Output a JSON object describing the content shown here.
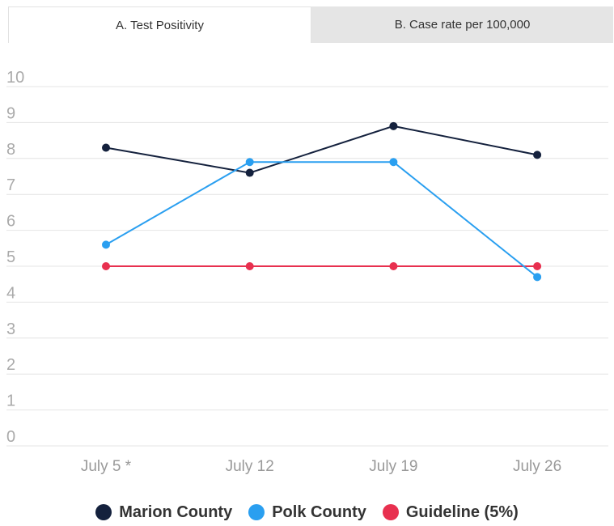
{
  "tabs": [
    {
      "label": "A. Test Positivity",
      "active": true
    },
    {
      "label": "B. Case rate per 100,000",
      "active": false
    }
  ],
  "chart_data": {
    "type": "line",
    "title": "",
    "xlabel": "",
    "ylabel": "",
    "categories": [
      "July 5 *",
      "July 12",
      "July 19",
      "July 26"
    ],
    "y_ticks": [
      "0",
      "1",
      "2",
      "3",
      "4",
      "5",
      "6",
      "7",
      "8",
      "9",
      "10"
    ],
    "ylim": [
      0,
      10
    ],
    "grid": true,
    "legend_position": "bottom",
    "series": [
      {
        "name": "Marion County",
        "color": "#14213d",
        "values": [
          8.3,
          7.6,
          8.9,
          8.1
        ]
      },
      {
        "name": "Polk County",
        "color": "#2a9ff0",
        "values": [
          5.6,
          7.9,
          7.9,
          4.7
        ]
      },
      {
        "name": "Guideline (5%)",
        "color": "#e8304f",
        "values": [
          5,
          5,
          5,
          5
        ]
      }
    ]
  }
}
